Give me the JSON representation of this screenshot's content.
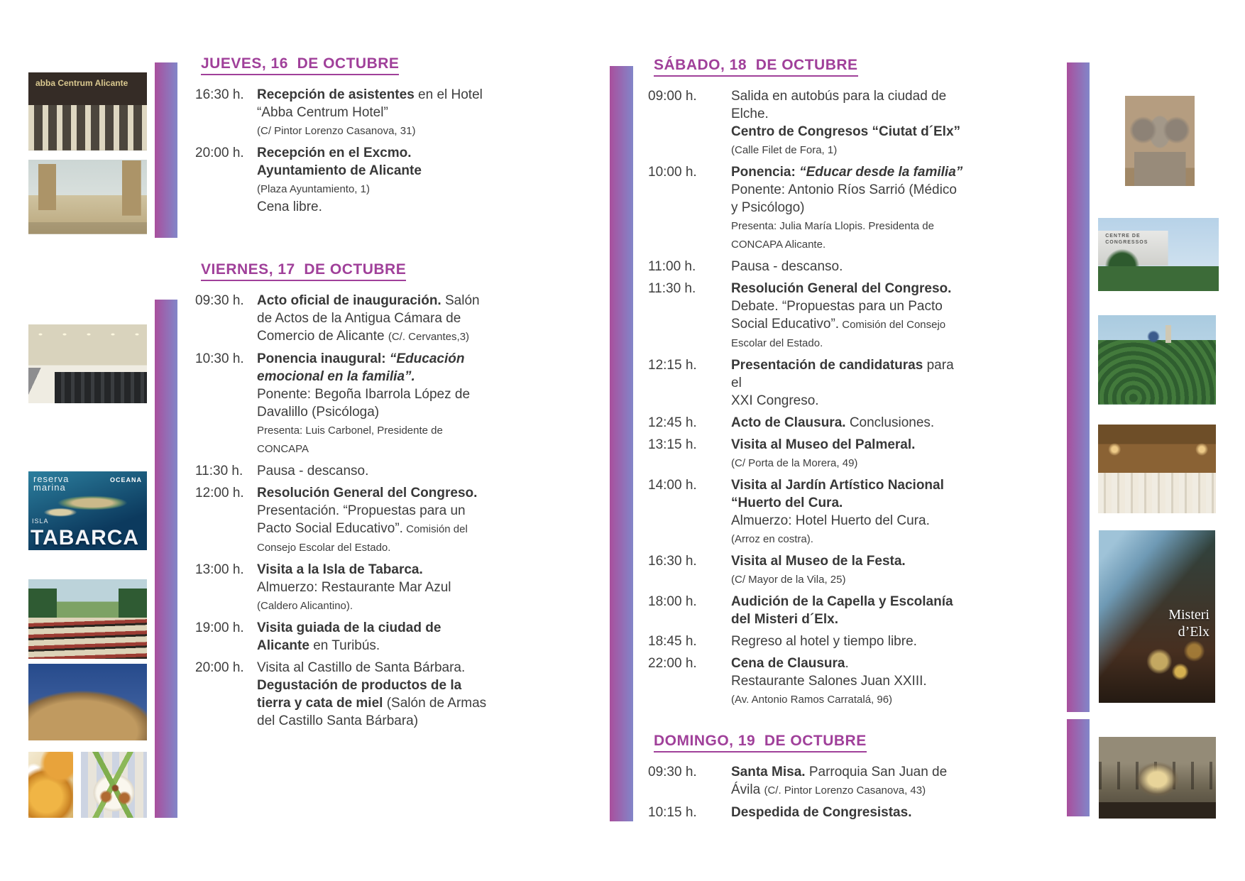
{
  "colors": {
    "background": "#ffffff",
    "accent_bar_left": "#a94f9d",
    "accent_bar_right": "#8286c9",
    "heading": "#a0409a",
    "body_text": "#3e3e3e"
  },
  "columns": [
    {
      "id": "left",
      "sections": [
        {
          "title": "JUEVES, 16  DE OCTUBRE",
          "events": [
            {
              "time": "16:30 h.",
              "lines": [
                [
                  {
                    "t": "Recepción de asistentes",
                    "st": "b"
                  },
                  {
                    "t": " en el Hotel",
                    "st": "r"
                  }
                ],
                [
                  {
                    "t": "“Abba Centrum Hotel”",
                    "st": "r"
                  }
                ],
                [
                  {
                    "t": "(C/ Pintor Lorenzo Casanova, 31)",
                    "st": "s"
                  }
                ]
              ]
            },
            {
              "time": "20:00 h.",
              "lines": [
                [
                  {
                    "t": "Recepción en el Excmo.",
                    "st": "b"
                  }
                ],
                [
                  {
                    "t": "Ayuntamiento de Alicante",
                    "st": "b"
                  }
                ],
                [
                  {
                    "t": "(Plaza Ayuntamiento, 1)",
                    "st": "s"
                  }
                ],
                [
                  {
                    "t": "Cena libre.",
                    "st": "r"
                  }
                ]
              ]
            }
          ]
        },
        {
          "title": "VIERNES, 17  DE OCTUBRE",
          "events": [
            {
              "time": "09:30 h.",
              "lines": [
                [
                  {
                    "t": "Acto oficial de inauguración.",
                    "st": "b"
                  },
                  {
                    "t": " Salón",
                    "st": "r"
                  }
                ],
                [
                  {
                    "t": "de Actos de la Antigua Cámara de",
                    "st": "r"
                  }
                ],
                [
                  {
                    "t": "Comercio de Alicante ",
                    "st": "r"
                  },
                  {
                    "t": "(C/. Cervantes,3)",
                    "st": "s"
                  }
                ]
              ]
            },
            {
              "time": "10:30 h.",
              "lines": [
                [
                  {
                    "t": "Ponencia inaugural: ",
                    "st": "b"
                  },
                  {
                    "t": "“Educación",
                    "st": "bi"
                  }
                ],
                [
                  {
                    "t": "emocional en la familia”.",
                    "st": "bi"
                  }
                ],
                [
                  {
                    "t": "Ponente: Begoña Ibarrola López de",
                    "st": "r"
                  }
                ],
                [
                  {
                    "t": "Davalillo (Psicóloga)",
                    "st": "r"
                  }
                ],
                [
                  {
                    "t": "Presenta: Luis Carbonel, Presidente de",
                    "st": "s"
                  }
                ],
                [
                  {
                    "t": "CONCAPA",
                    "st": "s"
                  }
                ]
              ]
            },
            {
              "time": "11:30 h.",
              "lines": [
                [
                  {
                    "t": "Pausa - descanso.",
                    "st": "r"
                  }
                ]
              ]
            },
            {
              "time": "12:00 h.",
              "lines": [
                [
                  {
                    "t": "Resolución General del Congreso.",
                    "st": "b"
                  }
                ],
                [
                  {
                    "t": "Presentación. “Propuestas para un",
                    "st": "r"
                  }
                ],
                [
                  {
                    "t": "Pacto Social Educativo”.",
                    "st": "r"
                  },
                  {
                    "t": " Comisión del",
                    "st": "s"
                  }
                ],
                [
                  {
                    "t": "Consejo Escolar del Estado.",
                    "st": "s"
                  }
                ]
              ]
            },
            {
              "time": "13:00 h.",
              "lines": [
                [
                  {
                    "t": "Visita a la Isla de Tabarca.",
                    "st": "b"
                  }
                ],
                [
                  {
                    "t": "Almuerzo: Restaurante Mar Azul",
                    "st": "r"
                  }
                ],
                [
                  {
                    "t": "(Caldero Alicantino).",
                    "st": "s"
                  }
                ]
              ]
            },
            {
              "time": "19:00 h.",
              "lines": [
                [
                  {
                    "t": "Visita guiada de la ciudad de",
                    "st": "b"
                  }
                ],
                [
                  {
                    "t": "Alicante",
                    "st": "b"
                  },
                  {
                    "t": " en Turibús.",
                    "st": "r"
                  }
                ]
              ]
            },
            {
              "time": "20:00 h.",
              "lines": [
                [
                  {
                    "t": "Visita al Castillo de Santa Bárbara.",
                    "st": "r"
                  }
                ],
                [
                  {
                    "t": "Degustación de productos de la",
                    "st": "b"
                  }
                ],
                [
                  {
                    "t": "tierra y cata de miel",
                    "st": "b"
                  },
                  {
                    "t": " (Salón de Armas",
                    "st": "r"
                  }
                ],
                [
                  {
                    "t": "del Castillo Santa Bárbara)",
                    "st": "r"
                  }
                ]
              ]
            }
          ]
        }
      ]
    },
    {
      "id": "right",
      "sections": [
        {
          "title": "SÁBADO, 18  DE OCTUBRE",
          "events": [
            {
              "time": "09:00 h.",
              "lines": [
                [
                  {
                    "t": "Salida en autobús para la ciudad de",
                    "st": "r"
                  }
                ],
                [
                  {
                    "t": "Elche.",
                    "st": "r"
                  }
                ],
                [
                  {
                    "t": "Centro de Congresos “Ciutat d´Elx”",
                    "st": "b"
                  }
                ],
                [
                  {
                    "t": "(Calle Filet de Fora, 1)",
                    "st": "s"
                  }
                ]
              ]
            },
            {
              "time": "10:00 h.",
              "lines": [
                [
                  {
                    "t": "Ponencia: ",
                    "st": "b"
                  },
                  {
                    "t": "“Educar desde la familia”",
                    "st": "bi"
                  }
                ],
                [
                  {
                    "t": "Ponente: Antonio Ríos Sarrió (Médico",
                    "st": "r"
                  }
                ],
                [
                  {
                    "t": "y Psicólogo)",
                    "st": "r"
                  }
                ],
                [
                  {
                    "t": "Presenta: Julia María Llopis. Presidenta de",
                    "st": "s"
                  }
                ],
                [
                  {
                    "t": "CONCAPA Alicante.",
                    "st": "s"
                  }
                ]
              ]
            },
            {
              "time": "11:00 h.",
              "lines": [
                [
                  {
                    "t": "Pausa - descanso.",
                    "st": "r"
                  }
                ]
              ]
            },
            {
              "time": "11:30 h.",
              "lines": [
                [
                  {
                    "t": "Resolución General del Congreso.",
                    "st": "b"
                  }
                ],
                [
                  {
                    "t": "Debate. “Propuestas para un Pacto",
                    "st": "r"
                  }
                ],
                [
                  {
                    "t": "Social Educativo”.",
                    "st": "r"
                  },
                  {
                    "t": " Comisión del Consejo",
                    "st": "s"
                  }
                ],
                [
                  {
                    "t": "Escolar del Estado.",
                    "st": "s"
                  }
                ]
              ]
            },
            {
              "time": "12:15 h.",
              "lines": [
                [
                  {
                    "t": "Presentación de candidaturas",
                    "st": "b"
                  },
                  {
                    "t": " para el",
                    "st": "r"
                  }
                ],
                [
                  {
                    "t": "XXI Congreso.",
                    "st": "r"
                  }
                ]
              ]
            },
            {
              "time": "12:45 h.",
              "lines": [
                [
                  {
                    "t": "Acto de Clausura.",
                    "st": "b"
                  },
                  {
                    "t": " Conclusiones.",
                    "st": "r"
                  }
                ]
              ]
            },
            {
              "time": "13:15 h.",
              "lines": [
                [
                  {
                    "t": "Visita al Museo del Palmeral.",
                    "st": "b"
                  }
                ],
                [
                  {
                    "t": "(C/ Porta de la Morera, 49)",
                    "st": "s"
                  }
                ]
              ]
            },
            {
              "time": "14:00 h.",
              "lines": [
                [
                  {
                    "t": "Visita al Jardín Artístico Nacional",
                    "st": "b"
                  }
                ],
                [
                  {
                    "t": "“Huerto del Cura.",
                    "st": "b"
                  }
                ],
                [
                  {
                    "t": "Almuerzo: Hotel Huerto del Cura.",
                    "st": "r"
                  }
                ],
                [
                  {
                    "t": "(Arroz en costra).",
                    "st": "s"
                  }
                ]
              ]
            },
            {
              "time": "16:30 h.",
              "lines": [
                [
                  {
                    "t": "Visita al Museo de la Festa.",
                    "st": "b"
                  }
                ],
                [
                  {
                    "t": "(C/ Mayor de la Vila, 25)",
                    "st": "s"
                  }
                ]
              ]
            },
            {
              "time": "18:00 h.",
              "lines": [
                [
                  {
                    "t": "Audición de la Capella y Escolanía",
                    "st": "b"
                  }
                ],
                [
                  {
                    "t": "del Misteri d´Elx.",
                    "st": "b"
                  }
                ]
              ]
            },
            {
              "time": "18:45 h.",
              "lines": [
                [
                  {
                    "t": "Regreso al hotel y tiempo libre.",
                    "st": "r"
                  }
                ]
              ]
            },
            {
              "time": "22:00 h.",
              "lines": [
                [
                  {
                    "t": "Cena de Clausura",
                    "st": "b"
                  },
                  {
                    "t": ".",
                    "st": "r"
                  }
                ],
                [
                  {
                    "t": "Restaurante Salones Juan XXIII.",
                    "st": "r"
                  }
                ],
                [
                  {
                    "t": "(Av. Antonio Ramos Carratalá, 96)",
                    "st": "s"
                  }
                ]
              ]
            }
          ]
        },
        {
          "title": "DOMINGO, 19  DE OCTUBRE",
          "events": [
            {
              "time": "09:30 h.",
              "lines": [
                [
                  {
                    "t": "Santa Misa.",
                    "st": "b"
                  },
                  {
                    "t": " Parroquia San Juan de",
                    "st": "r"
                  }
                ],
                [
                  {
                    "t": "Ávila ",
                    "st": "r"
                  },
                  {
                    "t": "(C/. Pintor Lorenzo Casanova, 43)",
                    "st": "s"
                  }
                ]
              ]
            },
            {
              "time": "10:15 h.",
              "lines": [
                [
                  {
                    "t": "Despedida de Congresistas.",
                    "st": "b"
                  }
                ]
              ]
            }
          ]
        }
      ]
    }
  ],
  "photos": {
    "hotel": {
      "sign": "abba Centrum Alicante"
    },
    "tabarca": {
      "reserva": "reserva\nmarina",
      "oceana": "OCEANA",
      "isla": "ISLA",
      "name": "TABARCA"
    },
    "congress": {
      "sign": "CENTRE DE CONGRESSOS"
    },
    "misteri": {
      "caption_line1": "Misteri",
      "caption_line2": "d’Elx"
    }
  }
}
